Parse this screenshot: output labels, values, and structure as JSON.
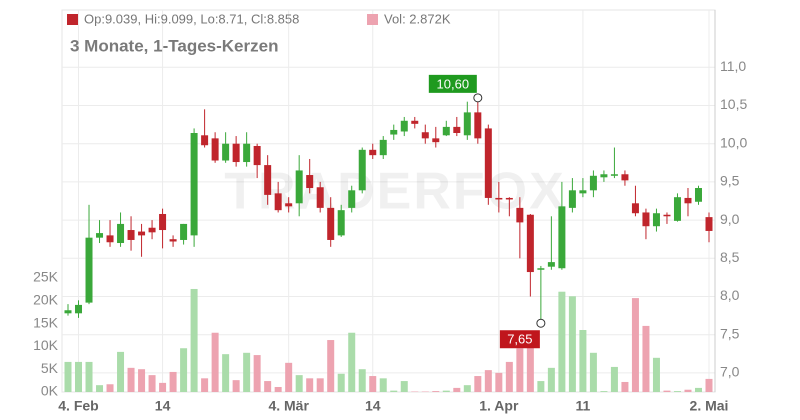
{
  "chart_data": {
    "type": "candlestick",
    "header_ohlc": "Op:9.039, Hi:9.099, Lo:8.71, Cl:8.858",
    "header_volume": "Vol: 2.872K",
    "subtitle": "3 Monate, 1-Tages-Kerzen",
    "watermark": "TRADERFOX",
    "categories": [
      null,
      "4. Feb",
      null,
      null,
      null,
      null,
      null,
      null,
      null,
      "14",
      null,
      null,
      null,
      null,
      null,
      null,
      null,
      null,
      null,
      null,
      null,
      "4. Mär",
      null,
      null,
      null,
      null,
      null,
      null,
      null,
      "14",
      null,
      null,
      null,
      null,
      null,
      null,
      null,
      null,
      null,
      null,
      null,
      "1. Apr",
      null,
      null,
      null,
      null,
      null,
      null,
      null,
      "11",
      null,
      null,
      null,
      null,
      null,
      null,
      null,
      null,
      null,
      null,
      null,
      "2. Mai"
    ],
    "open": [
      7.78,
      7.78,
      7.92,
      8.77,
      8.8,
      8.7,
      8.87,
      8.85,
      8.9,
      9.08,
      8.75,
      8.74,
      8.8,
      10.11,
      10.07,
      9.78,
      10.0,
      9.76,
      9.97,
      9.72,
      9.35,
      9.22,
      9.22,
      9.59,
      9.43,
      9.16,
      8.8,
      9.16,
      9.39,
      9.92,
      9.85,
      10.12,
      10.16,
      10.3,
      10.15,
      10.07,
      10.11,
      10.22,
      10.11,
      10.41,
      10.2,
      9.29,
      9.29,
      9.16,
      9.07,
      8.35,
      8.39,
      8.37,
      9.16,
      9.35,
      9.39,
      9.56,
      9.58,
      9.6,
      9.22,
      9.1,
      8.92,
      9.07,
      8.99,
      9.29,
      9.24,
      9.039
    ],
    "high": [
      7.9,
      7.95,
      9.2,
      9.0,
      9.0,
      9.1,
      9.05,
      8.95,
      9.0,
      9.15,
      8.8,
      8.95,
      10.2,
      10.45,
      10.15,
      10.15,
      10.1,
      10.15,
      10.0,
      9.85,
      9.5,
      9.3,
      9.85,
      9.8,
      9.5,
      9.3,
      9.2,
      9.45,
      9.95,
      10.0,
      10.1,
      10.25,
      10.35,
      10.35,
      10.25,
      10.22,
      10.3,
      10.35,
      10.55,
      10.6,
      10.25,
      9.5,
      9.3,
      9.3,
      9.08,
      8.4,
      9.05,
      9.5,
      9.55,
      9.55,
      9.65,
      9.65,
      9.95,
      9.65,
      9.45,
      9.15,
      9.15,
      9.1,
      9.35,
      9.42,
      9.45,
      9.099
    ],
    "low": [
      7.75,
      7.72,
      7.9,
      8.7,
      8.65,
      8.65,
      8.6,
      8.52,
      8.75,
      8.63,
      8.65,
      8.68,
      8.65,
      9.95,
      9.75,
      9.75,
      9.7,
      9.7,
      9.55,
      9.2,
      9.1,
      9.1,
      9.05,
      9.35,
      9.1,
      8.65,
      8.78,
      9.1,
      9.35,
      9.8,
      9.8,
      10.05,
      10.1,
      10.2,
      10.0,
      9.95,
      10.1,
      10.1,
      10.05,
      10.0,
      9.2,
      9.1,
      9.05,
      8.5,
      8.0,
      7.65,
      8.35,
      8.35,
      9.1,
      9.3,
      9.3,
      9.5,
      9.55,
      9.45,
      9.05,
      8.75,
      8.85,
      8.95,
      8.98,
      9.05,
      9.2,
      8.71
    ],
    "close": [
      7.82,
      7.89,
      8.77,
      8.83,
      8.71,
      8.95,
      8.74,
      8.8,
      8.84,
      8.87,
      8.72,
      8.95,
      10.14,
      9.98,
      9.78,
      10.0,
      9.76,
      10.0,
      9.72,
      9.33,
      9.13,
      9.18,
      9.65,
      9.42,
      9.16,
      8.74,
      9.13,
      9.39,
      9.92,
      9.85,
      10.05,
      10.18,
      10.3,
      10.26,
      10.07,
      10.02,
      10.22,
      10.14,
      10.41,
      10.07,
      9.29,
      9.27,
      9.27,
      8.97,
      8.32,
      8.37,
      8.45,
      9.18,
      9.39,
      9.39,
      9.58,
      9.6,
      9.6,
      9.52,
      9.09,
      8.92,
      9.09,
      9.05,
      9.3,
      9.22,
      9.42,
      8.858
    ],
    "volume": [
      6.6,
      6.6,
      6.6,
      1.5,
      1.7,
      8.8,
      5.3,
      5,
      3.7,
      2,
      4.4,
      9.6,
      22.6,
      3,
      13,
      8.3,
      2.6,
      8.6,
      8.1,
      2.4,
      1.1,
      6.4,
      3.7,
      3,
      3,
      11.4,
      4,
      13,
      5,
      3.5,
      3,
      0.3,
      2.4,
      0.1,
      0.1,
      0.2,
      0.3,
      0.9,
      1.5,
      3.5,
      4.8,
      4.2,
      6.6,
      9.6,
      11.2,
      2.4,
      5.3,
      22,
      21,
      13.6,
      8.6,
      0.2,
      5.5,
      2.2,
      20.6,
      14.5,
      7.5,
      0.3,
      0.2,
      0.5,
      0.9,
      2.872
    ],
    "up_color": "#3aa83a",
    "down_color": "#c0252c",
    "volume_up_color": "#aadcaa",
    "volume_down_color": "#eda3b0",
    "ylim": [
      6.75,
      11.75
    ],
    "yticks": [
      {
        "value": 7,
        "label": "7,0"
      },
      {
        "value": 7.5,
        "label": "7,5"
      },
      {
        "value": 8,
        "label": "8,0"
      },
      {
        "value": 8.5,
        "label": "8,5"
      },
      {
        "value": 9,
        "label": "9,0"
      },
      {
        "value": 9.5,
        "label": "9,5"
      },
      {
        "value": 10,
        "label": "10,0"
      },
      {
        "value": 10.5,
        "label": "10,5"
      },
      {
        "value": 11,
        "label": "11,0"
      }
    ],
    "y2lim": [
      0,
      83.8
    ],
    "y2ticks": [
      {
        "value": 0,
        "label": "0K"
      },
      {
        "value": 5,
        "label": "5K"
      },
      {
        "value": 10,
        "label": "10K"
      },
      {
        "value": 15,
        "label": "15K"
      },
      {
        "value": 20,
        "label": "20K"
      },
      {
        "value": 25,
        "label": "25K"
      }
    ],
    "annotations": [
      {
        "value": 10.6,
        "label": "10,60",
        "kind": "max",
        "color": "#1f9a1f"
      },
      {
        "value": 7.65,
        "label": "7,65",
        "kind": "min",
        "color": "#c0161c"
      }
    ],
    "grid": true
  }
}
